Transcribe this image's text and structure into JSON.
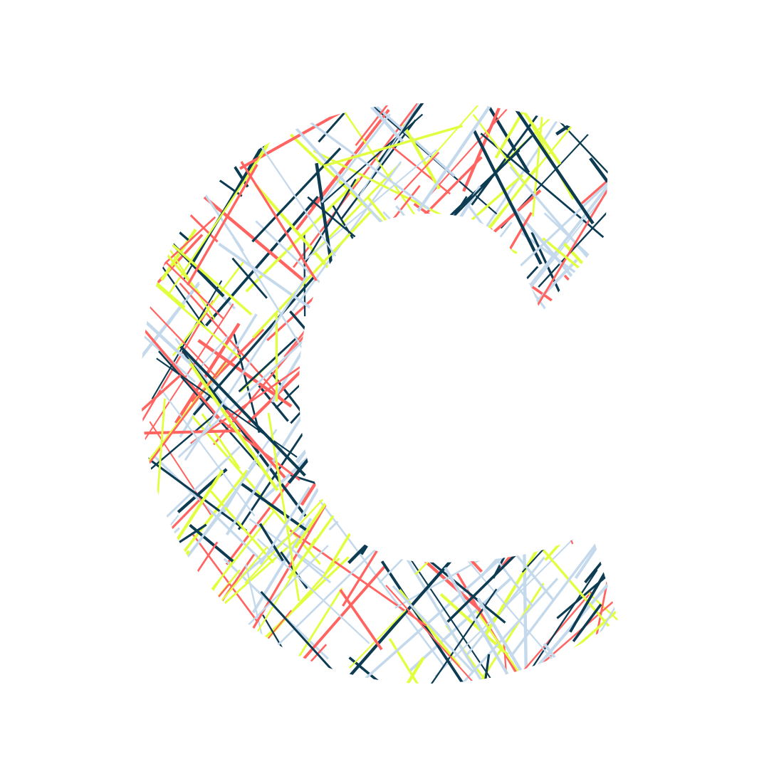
{
  "artwork": {
    "glyph": "C",
    "style": "hatched-lines",
    "background": "#ffffff",
    "palette": [
      {
        "name": "navy",
        "hex": "#0d3b52"
      },
      {
        "name": "coral",
        "hex": "#ff6461"
      },
      {
        "name": "lime",
        "hex": "#e2ff3f"
      },
      {
        "name": "pale-blue",
        "hex": "#c4d9eb"
      }
    ]
  }
}
